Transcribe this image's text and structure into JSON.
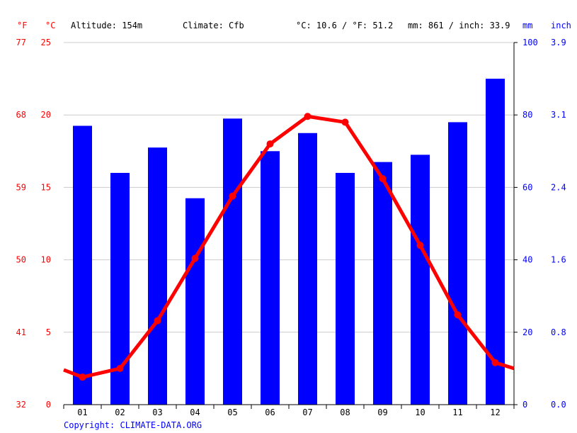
{
  "header": {
    "unit_f": "°F",
    "unit_c": "°C",
    "altitude": "Altitude: 154m",
    "climate": "Climate: Cfb",
    "avg_temp": "°C: 10.6 / °F: 51.2",
    "precip": "mm: 861 / inch: 33.9",
    "unit_mm": "mm",
    "unit_inch": "inch"
  },
  "copyright": "Copyright: CLIMATE-DATA.ORG",
  "colors": {
    "temperature": "#ff0000",
    "precipitation": "#0000ff",
    "grid": "#cccccc",
    "axis": "#000000"
  },
  "chart_data": {
    "type": "bar",
    "categories": [
      "01",
      "02",
      "03",
      "04",
      "05",
      "06",
      "07",
      "08",
      "09",
      "10",
      "11",
      "12"
    ],
    "series": [
      {
        "type": "bar",
        "axis": "right",
        "unit": "mm",
        "values": [
          77,
          64,
          71,
          57,
          79,
          70,
          75,
          64,
          67,
          69,
          78,
          90
        ]
      },
      {
        "type": "line",
        "axis": "left",
        "unit": "°C",
        "values": [
          1.9,
          2.5,
          5.8,
          10.1,
          14.4,
          18.0,
          19.9,
          19.5,
          15.6,
          11.0,
          6.2,
          2.9
        ],
        "edge_start": 2.4,
        "edge_end": 2.5
      }
    ],
    "left_axis": {
      "label": "°C",
      "ticks": [
        0,
        5,
        10,
        15,
        20,
        25
      ],
      "ylim": [
        0,
        25
      ]
    },
    "left_outer_axis": {
      "label": "°F",
      "ticks": [
        32,
        41,
        50,
        59,
        68,
        77
      ]
    },
    "right_axis": {
      "label": "mm",
      "ticks": [
        0,
        20,
        40,
        60,
        80,
        100
      ],
      "ylim": [
        0,
        100
      ]
    },
    "right_outer_axis": {
      "label": "inch",
      "ticks": [
        "0.0",
        "0.8",
        "1.6",
        "2.4",
        "3.1",
        "3.9"
      ]
    },
    "grid": true
  }
}
